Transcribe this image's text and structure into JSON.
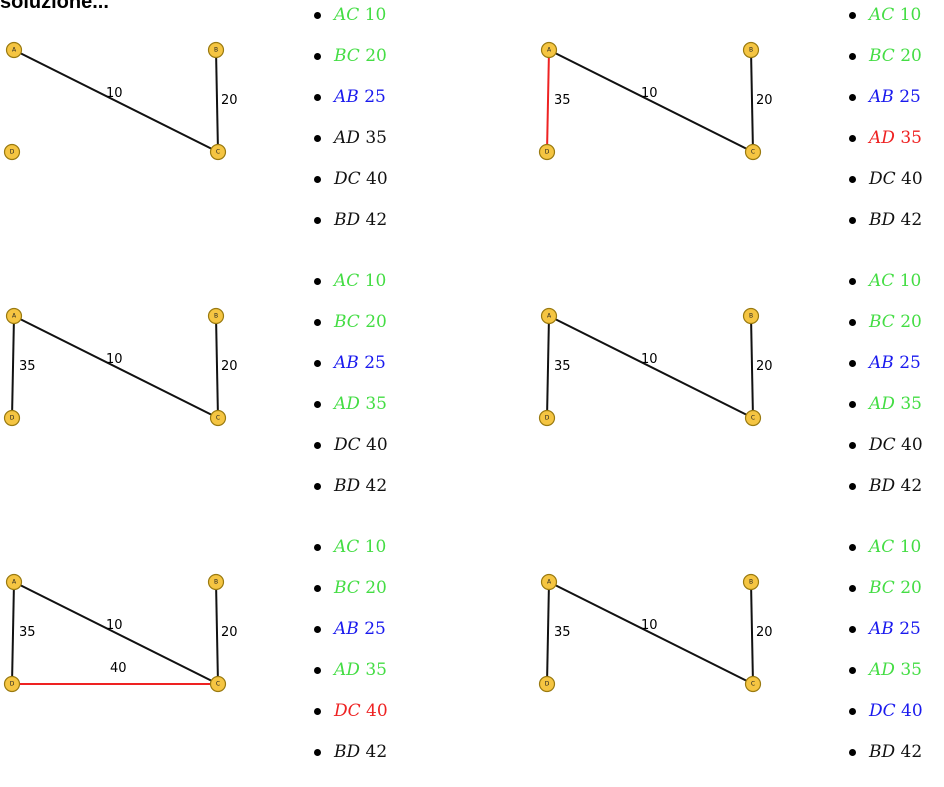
{
  "title": "soluzione...",
  "colors": {
    "accepted": "#44dd44",
    "current": "#1a1aee",
    "rejected": "#ee2222",
    "pending": "#111111",
    "node_fill": "#f5c542",
    "edge_default": "#111111"
  },
  "nodes": [
    {
      "id": "A",
      "label": "A"
    },
    {
      "id": "B",
      "label": "B"
    },
    {
      "id": "C",
      "label": "C"
    },
    {
      "id": "D",
      "label": "D"
    }
  ],
  "panels": [
    {
      "edges": [
        {
          "from": "A",
          "to": "C",
          "label": "10",
          "color": "black"
        },
        {
          "from": "B",
          "to": "C",
          "label": "20",
          "color": "black"
        }
      ],
      "list": [
        {
          "edge": "AC",
          "weight": "10",
          "status": "accepted"
        },
        {
          "edge": "BC",
          "weight": "20",
          "status": "accepted"
        },
        {
          "edge": "AB",
          "weight": "25",
          "status": "current"
        },
        {
          "edge": "AD",
          "weight": "35",
          "status": "pending"
        },
        {
          "edge": "DC",
          "weight": "40",
          "status": "pending"
        },
        {
          "edge": "BD",
          "weight": "42",
          "status": "pending"
        }
      ]
    },
    {
      "edges": [
        {
          "from": "A",
          "to": "C",
          "label": "10",
          "color": "black"
        },
        {
          "from": "B",
          "to": "C",
          "label": "20",
          "color": "black"
        },
        {
          "from": "A",
          "to": "D",
          "label": "35",
          "color": "red"
        }
      ],
      "list": [
        {
          "edge": "AC",
          "weight": "10",
          "status": "accepted"
        },
        {
          "edge": "BC",
          "weight": "20",
          "status": "accepted"
        },
        {
          "edge": "AB",
          "weight": "25",
          "status": "current"
        },
        {
          "edge": "AD",
          "weight": "35",
          "status": "rejected"
        },
        {
          "edge": "DC",
          "weight": "40",
          "status": "pending"
        },
        {
          "edge": "BD",
          "weight": "42",
          "status": "pending"
        }
      ]
    },
    {
      "edges": [
        {
          "from": "A",
          "to": "C",
          "label": "10",
          "color": "black"
        },
        {
          "from": "B",
          "to": "C",
          "label": "20",
          "color": "black"
        },
        {
          "from": "A",
          "to": "D",
          "label": "35",
          "color": "black"
        }
      ],
      "list": [
        {
          "edge": "AC",
          "weight": "10",
          "status": "accepted"
        },
        {
          "edge": "BC",
          "weight": "20",
          "status": "accepted"
        },
        {
          "edge": "AB",
          "weight": "25",
          "status": "current"
        },
        {
          "edge": "AD",
          "weight": "35",
          "status": "accepted"
        },
        {
          "edge": "DC",
          "weight": "40",
          "status": "pending"
        },
        {
          "edge": "BD",
          "weight": "42",
          "status": "pending"
        }
      ]
    },
    {
      "edges": [
        {
          "from": "A",
          "to": "C",
          "label": "10",
          "color": "black"
        },
        {
          "from": "B",
          "to": "C",
          "label": "20",
          "color": "black"
        },
        {
          "from": "A",
          "to": "D",
          "label": "35",
          "color": "black"
        }
      ],
      "list": [
        {
          "edge": "AC",
          "weight": "10",
          "status": "accepted"
        },
        {
          "edge": "BC",
          "weight": "20",
          "status": "accepted"
        },
        {
          "edge": "AB",
          "weight": "25",
          "status": "current"
        },
        {
          "edge": "AD",
          "weight": "35",
          "status": "accepted"
        },
        {
          "edge": "DC",
          "weight": "40",
          "status": "pending"
        },
        {
          "edge": "BD",
          "weight": "42",
          "status": "pending"
        }
      ]
    },
    {
      "edges": [
        {
          "from": "A",
          "to": "C",
          "label": "10",
          "color": "black"
        },
        {
          "from": "B",
          "to": "C",
          "label": "20",
          "color": "black"
        },
        {
          "from": "A",
          "to": "D",
          "label": "35",
          "color": "black"
        },
        {
          "from": "D",
          "to": "C",
          "label": "40",
          "color": "red"
        }
      ],
      "list": [
        {
          "edge": "AC",
          "weight": "10",
          "status": "accepted"
        },
        {
          "edge": "BC",
          "weight": "20",
          "status": "accepted"
        },
        {
          "edge": "AB",
          "weight": "25",
          "status": "current"
        },
        {
          "edge": "AD",
          "weight": "35",
          "status": "accepted"
        },
        {
          "edge": "DC",
          "weight": "40",
          "status": "rejected"
        },
        {
          "edge": "BD",
          "weight": "42",
          "status": "pending"
        }
      ]
    },
    {
      "edges": [
        {
          "from": "A",
          "to": "C",
          "label": "10",
          "color": "black"
        },
        {
          "from": "B",
          "to": "C",
          "label": "20",
          "color": "black"
        },
        {
          "from": "A",
          "to": "D",
          "label": "35",
          "color": "black"
        }
      ],
      "list": [
        {
          "edge": "AC",
          "weight": "10",
          "status": "accepted"
        },
        {
          "edge": "BC",
          "weight": "20",
          "status": "accepted"
        },
        {
          "edge": "AB",
          "weight": "25",
          "status": "current"
        },
        {
          "edge": "AD",
          "weight": "35",
          "status": "accepted"
        },
        {
          "edge": "DC",
          "weight": "40",
          "status": "current"
        },
        {
          "edge": "BD",
          "weight": "42",
          "status": "pending"
        }
      ]
    }
  ]
}
